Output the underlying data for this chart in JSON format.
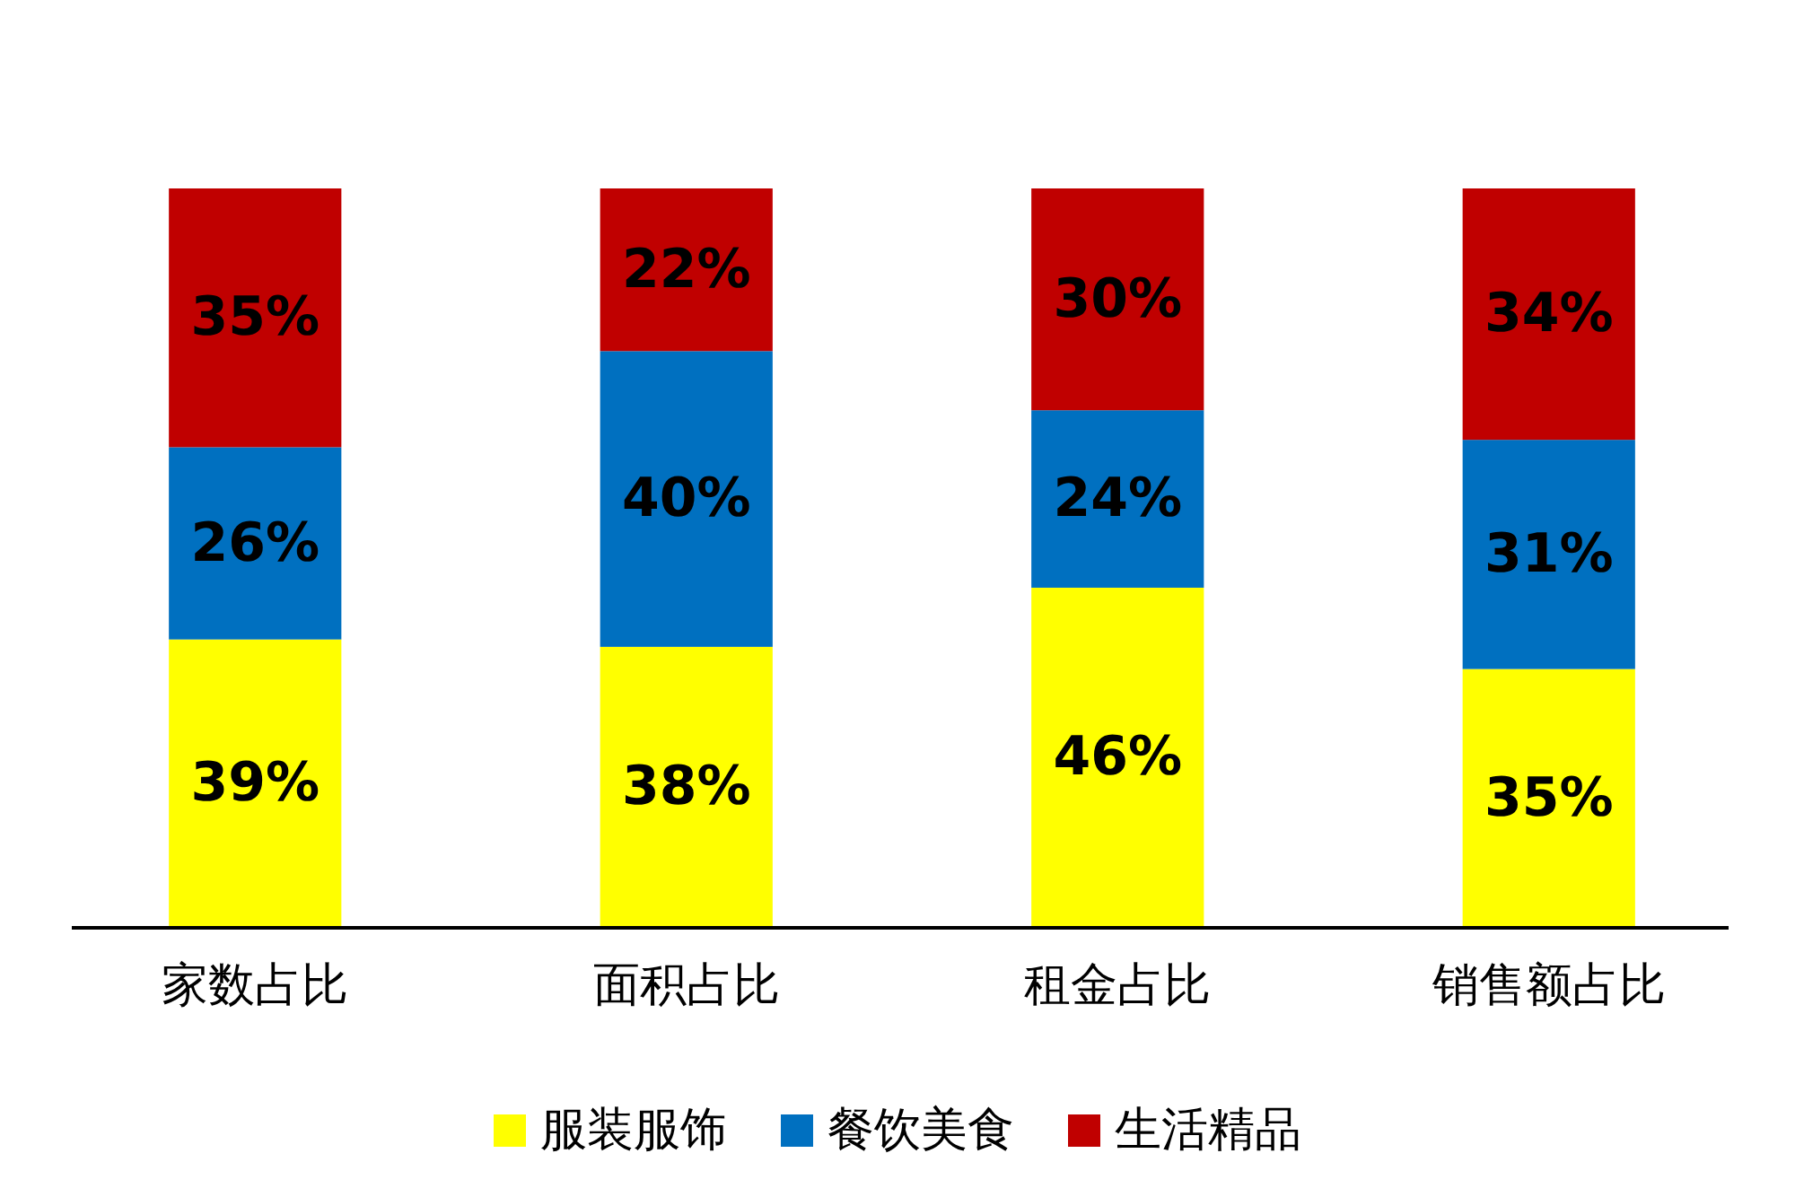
{
  "chart_data": {
    "type": "bar",
    "stacked": true,
    "categories": [
      "家数占比",
      "面积占比",
      "租金占比",
      "销售额占比"
    ],
    "series": [
      {
        "name": "服装服饰",
        "color": "#ffff00",
        "values": [
          39,
          38,
          46,
          35
        ],
        "value_labels": [
          "39%",
          "38%",
          "46%",
          "35%"
        ]
      },
      {
        "name": "餐饮美食",
        "color": "#0070c0",
        "values": [
          26,
          40,
          24,
          31
        ],
        "value_labels": [
          "26%",
          "40%",
          "24%",
          "31%"
        ]
      },
      {
        "name": "生活精品",
        "color": "#c00000",
        "values": [
          35,
          22,
          30,
          34
        ],
        "value_labels": [
          "35%",
          "22%",
          "30%",
          "34%"
        ]
      }
    ],
    "legend": "bottom"
  }
}
